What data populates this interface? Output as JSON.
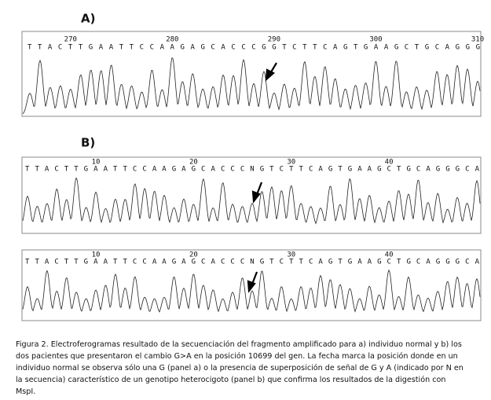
{
  "panel_a": {
    "label": "A)",
    "positions": [
      "270",
      "280",
      "290",
      "300",
      "310"
    ],
    "sequence": "TTACTTGAATTCCAAGAGCACCCGGTCTTCAGTGAAGCTGCAGGG"
  },
  "panel_b": {
    "label": "B)",
    "traces": [
      {
        "positions": [
          "10",
          "20",
          "30",
          "40"
        ],
        "sequence": "TTACTTGAATTCCAAGAGCACCCNGTCTTCAGTGAAGCTGCAGGGCA"
      },
      {
        "positions": [
          "10",
          "20",
          "30",
          "40"
        ],
        "sequence": "TTACTTGAATTCCAAGAGCACCCNGTCTTCAGTGAAGCTGCAGGGCA"
      }
    ]
  },
  "caption": [
    "Figura 2. Electroferogramas resultado de la secuenciación del fragmento amplificado para a) individuo normal y b) los",
    "dos pacientes que presentaron el cambio G>A en la posición 10699 del gen. La fecha marca la posición donde en un",
    "individuo normal se observa sólo una G (panel a) o la presencia de superposición de señal de G y A (indicado por N en",
    "la secuencia) característico de un genotipo heterocigoto (panel b) que confirma los resultados de la digestión con",
    "MspI."
  ]
}
